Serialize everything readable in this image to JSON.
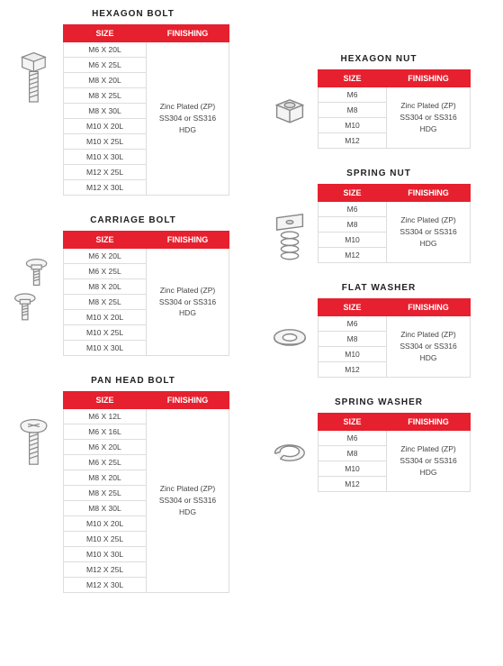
{
  "headers": {
    "size": "SIZE",
    "finishing": "FINISHING"
  },
  "finishing_text": "Zinc Plated (ZP)\nSS304 or SS316\nHDG",
  "left": [
    {
      "title": "HEXAGON BOLT",
      "sizes": [
        "M6 X 20L",
        "M6 X 25L",
        "M8 X 20L",
        "M8 X 25L",
        "M8 X 30L",
        "M10 X 20L",
        "M10 X 25L",
        "M10 X 30L",
        "M12 X 25L",
        "M12 X 30L"
      ]
    },
    {
      "title": "CARRIAGE BOLT",
      "sizes": [
        "M6 X 20L",
        "M6 X 25L",
        "M8 X 20L",
        "M8 X 25L",
        "M10 X 20L",
        "M10 X 25L",
        "M10 X 30L"
      ]
    },
    {
      "title": "PAN HEAD BOLT",
      "sizes": [
        "M6 X 12L",
        "M6 X 16L",
        "M6 X 20L",
        "M6 X 25L",
        "M8 X 20L",
        "M8 X 25L",
        "M8 X 30L",
        "M10 X 20L",
        "M10 X 25L",
        "M10 X 30L",
        "M12 X 25L",
        "M12 X 30L"
      ]
    }
  ],
  "right": [
    {
      "title": "HEXAGON NUT",
      "sizes": [
        "M6",
        "M8",
        "M10",
        "M12"
      ]
    },
    {
      "title": "SPRING NUT",
      "sizes": [
        "M6",
        "M8",
        "M10",
        "M12"
      ]
    },
    {
      "title": "FLAT WASHER",
      "sizes": [
        "M6",
        "M8",
        "M10",
        "M12"
      ]
    },
    {
      "title": "SPRING WASHER",
      "sizes": [
        "M6",
        "M8",
        "M10",
        "M12"
      ]
    }
  ],
  "colors": {
    "header_bg": "#e6202e",
    "header_fg": "#ffffff",
    "border": "#dddddd",
    "text": "#444444"
  }
}
